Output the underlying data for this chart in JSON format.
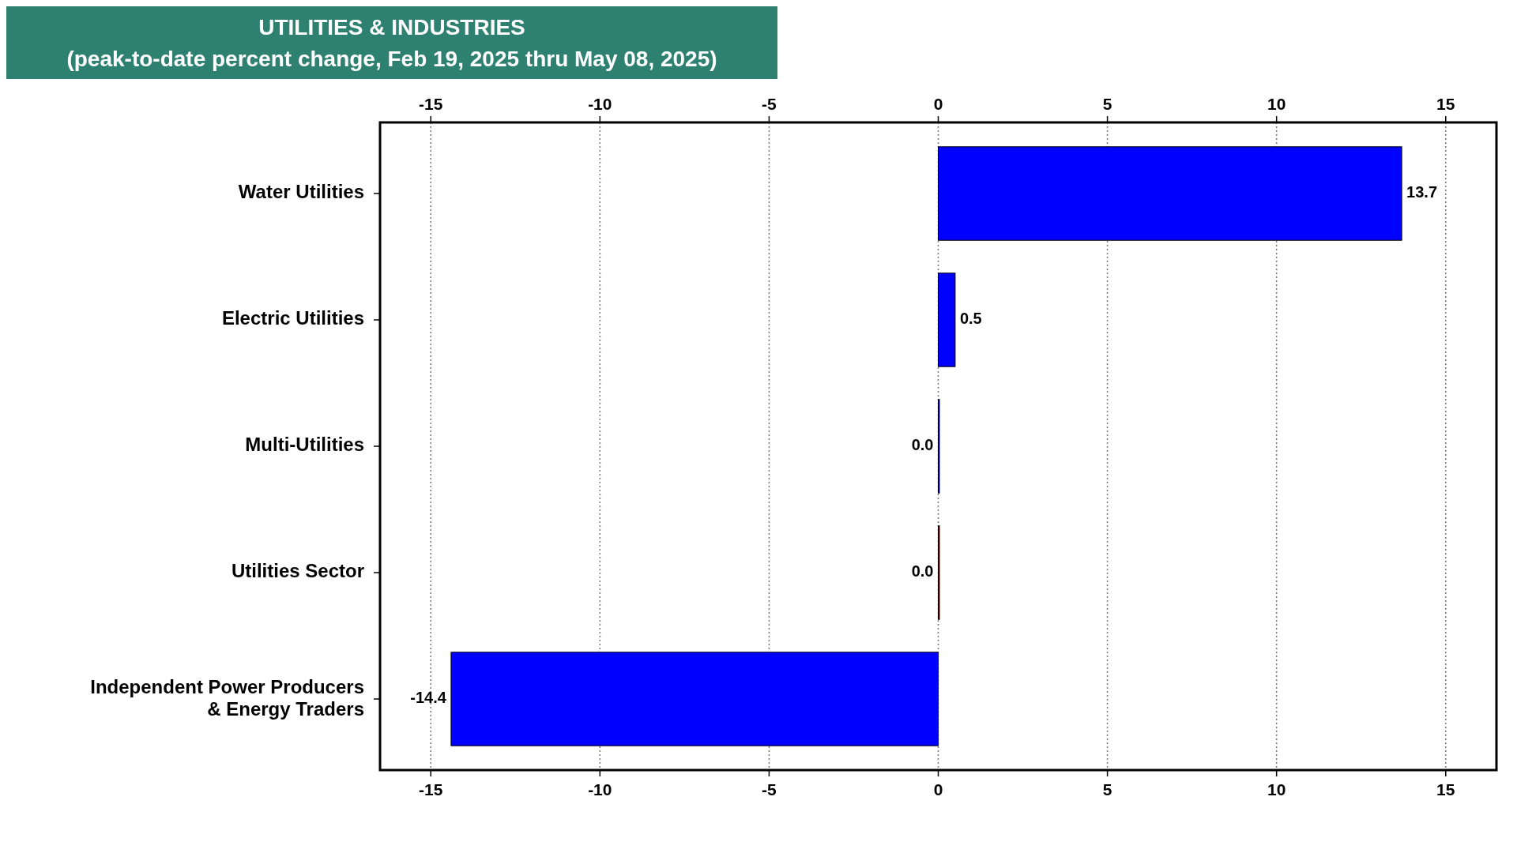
{
  "chart_data": {
    "type": "bar",
    "orientation": "horizontal",
    "title": "UTILITIES & INDUSTRIES",
    "subtitle": "(peak-to-date percent change, Feb 19, 2025 thru May 08, 2025)",
    "categories": [
      "Water Utilities",
      "Electric Utilities",
      "Multi-Utilities",
      "Utilities Sector",
      "Independent Power Producers\n& Energy Traders"
    ],
    "values": [
      13.7,
      0.5,
      0.0,
      0.0,
      -14.4
    ],
    "colors": [
      "#0000ff",
      "#0000ff",
      "#0000ff",
      "#8b0000",
      "#0000ff"
    ],
    "value_labels": [
      "13.7",
      "0.5",
      "0.0",
      "0.0",
      "-14.4"
    ],
    "xlim": [
      -16.5,
      16.5
    ],
    "xticks": [
      -15,
      -10,
      -5,
      0,
      5,
      10,
      15
    ],
    "x2lim": [
      -16.5,
      16.5
    ],
    "x2ticks": [
      -15,
      -10,
      -5,
      0,
      5,
      10,
      15
    ],
    "grid": "x",
    "line_style": "dotted"
  }
}
